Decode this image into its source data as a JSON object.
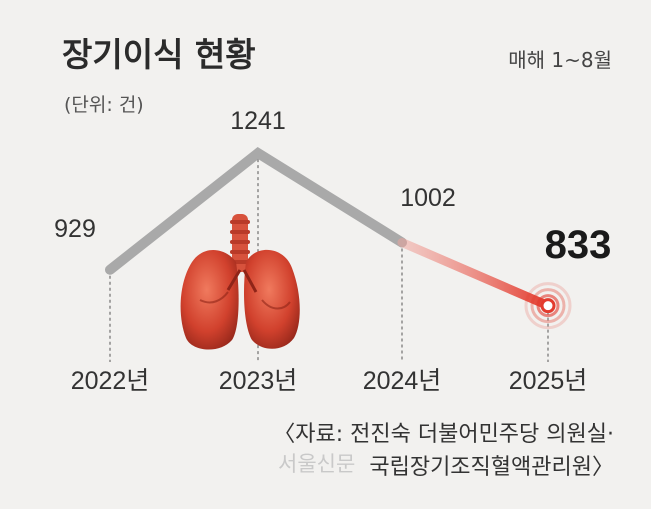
{
  "chart_data": {
    "type": "line",
    "title": "장기이식 현황",
    "subtitle": "매해 1~8월",
    "unit": "(단위: 건)",
    "x": [
      "2022년",
      "2023년",
      "2024년",
      "2025년"
    ],
    "values": [
      929,
      1241,
      1002,
      833
    ],
    "value_labels": [
      "929",
      "1241",
      "1002",
      "833"
    ],
    "highlight_index": 3,
    "colors": {
      "past": "#a9a9a9",
      "trend": "#e33b2e",
      "highlight": "#e33b2e"
    },
    "grid": false,
    "legend": "none"
  },
  "source": {
    "line1": "〈자료: 전진숙 더불어민주당 의원실·",
    "line2": "국립장기조직혈액관리원〉"
  },
  "watermark": "서울신문",
  "illustration": {
    "icon": "lungs-icon"
  }
}
